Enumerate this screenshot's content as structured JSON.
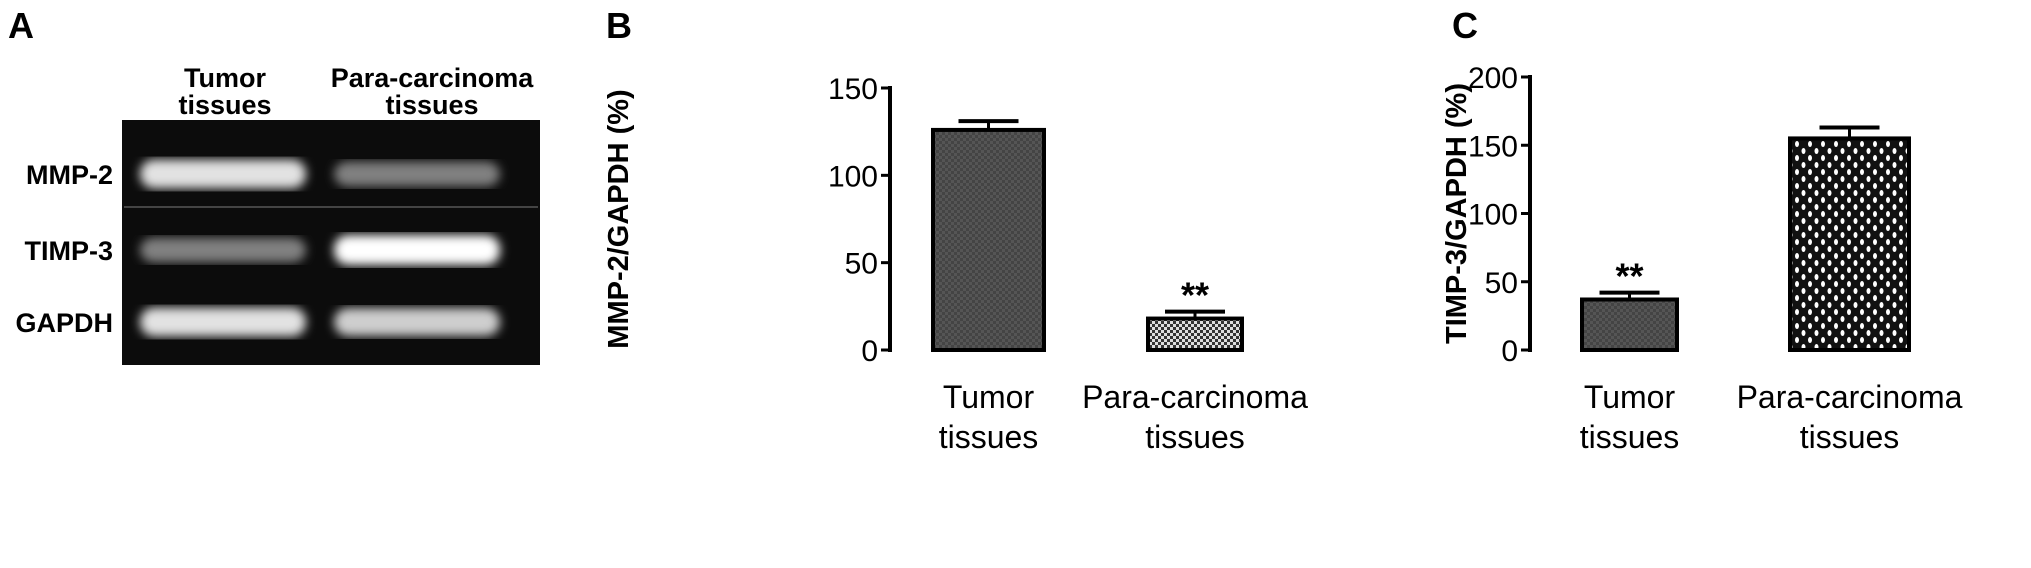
{
  "panels": {
    "a": {
      "letter": "A",
      "lanes": [
        {
          "line1": "Tumor",
          "line2": "tissues"
        },
        {
          "line1": "Para-carcinoma",
          "line2": "tissues"
        }
      ],
      "rows": [
        {
          "label": "MMP-2",
          "intensity": [
            0.85,
            0.35
          ]
        },
        {
          "label": "TIMP-3",
          "intensity": [
            0.35,
            1.0
          ]
        },
        {
          "label": "GAPDH",
          "intensity": [
            0.85,
            0.75
          ]
        }
      ]
    },
    "b": {
      "letter": "B"
    },
    "c": {
      "letter": "C"
    }
  },
  "chart_data": [
    {
      "type": "bar",
      "ylabel": "MMP-2/GAPDH (%)",
      "ylim": [
        0,
        150
      ],
      "yticks": [
        "0",
        "50",
        "100",
        "150"
      ],
      "categories": [
        {
          "line1": "Tumor",
          "line2": "tissues"
        },
        {
          "line1": "Para-carcinoma",
          "line2": "tissues"
        }
      ],
      "values": [
        126,
        18
      ],
      "errors": [
        5,
        4
      ],
      "annotations": [
        "",
        "**"
      ],
      "fills": [
        "dark-gray-checker",
        "light-gray-checker"
      ]
    },
    {
      "type": "bar",
      "ylabel": "TIMP-3/GAPDH (%)",
      "ylim": [
        0,
        200
      ],
      "yticks": [
        "0",
        "50",
        "100",
        "150",
        "200"
      ],
      "categories": [
        {
          "line1": "Tumor",
          "line2": "tissues"
        },
        {
          "line1": "Para-carcinoma",
          "line2": "tissues"
        }
      ],
      "values": [
        37,
        155
      ],
      "errors": [
        5,
        8
      ],
      "annotations": [
        "**",
        ""
      ],
      "fills": [
        "dark-gray-checker",
        "black-white-dots"
      ]
    }
  ]
}
